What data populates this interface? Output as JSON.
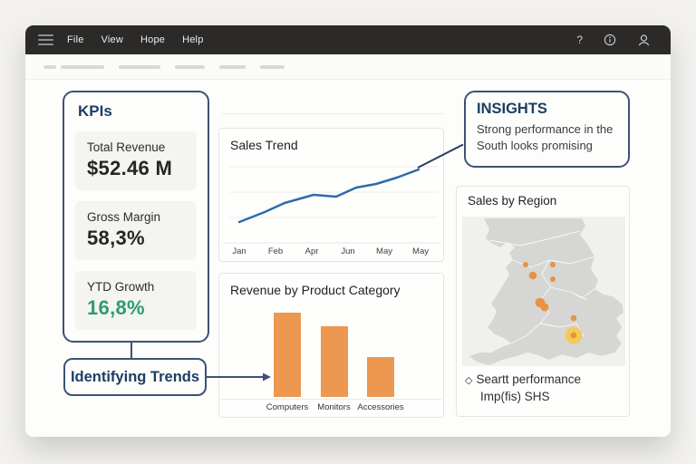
{
  "window": {
    "titlebar": {
      "bg": "#2b2a29",
      "menus": [
        "File",
        "View",
        "Hope",
        "Help"
      ],
      "right_icons": [
        "help-icon",
        "info-icon",
        "account-icon"
      ]
    },
    "toolbar": {
      "placeholder_dash_widths": [
        14,
        48,
        46,
        33,
        29,
        27
      ]
    }
  },
  "kpis": {
    "title": "KPIs",
    "cards": [
      {
        "label": "Total Revenue",
        "value": "$52.46 M",
        "value_color": "#252525"
      },
      {
        "label": "Gross Margin",
        "value": "58,3%",
        "value_color": "#252525"
      },
      {
        "label": "YTD Growth",
        "value": "16,8%",
        "value_color": "#2e9b72"
      }
    ]
  },
  "callouts": {
    "identifying_trends": {
      "label": "Identifying Trends"
    },
    "insights": {
      "title": "INSIGHTS",
      "body": "Strong performance in the South looks promising"
    }
  },
  "colors": {
    "accent_navy": "#3c5373",
    "heading_navy": "#1d3e63",
    "growth_green": "#2e9b72",
    "bar_orange": "#ec9850",
    "line_blue": "#2f6ba8",
    "connector_navy": "#2c3e60",
    "map_dot_orange": "#e8913f",
    "map_highlight_yellow": "#f3ca56",
    "map_land_gray": "#d6d6d4"
  },
  "chart_data": [
    {
      "id": "sales_trend",
      "type": "line",
      "title": "Sales Trend",
      "x_ticks": [
        "Jan",
        "Feb",
        "Apr",
        "Jun",
        "May",
        "May"
      ],
      "series": [
        {
          "name": "Sales",
          "points": [
            [
              5.3,
              23
            ],
            [
              17.6,
              34
            ],
            [
              27.3,
              44
            ],
            [
              41.4,
              53
            ],
            [
              52.4,
              51
            ],
            [
              62.1,
              61
            ],
            [
              71.8,
              65
            ],
            [
              81.9,
              72
            ],
            [
              92.5,
              81
            ]
          ]
        }
      ],
      "ylim": [
        0,
        100
      ],
      "y_axis_labeled": false,
      "gridline_values": [
        28,
        56,
        84
      ],
      "grid": true,
      "legend_position": "none",
      "line_color": "#2f6ba8"
    },
    {
      "id": "revenue_by_category",
      "type": "bar",
      "title": "Revenue by Product Category",
      "categories": [
        "Computers",
        "Monitors",
        "Accessories"
      ],
      "values": [
        93,
        78,
        44
      ],
      "ylim": [
        0,
        110
      ],
      "y_axis_labeled": false,
      "grid": false,
      "bar_color": "#ec9850"
    },
    {
      "id": "sales_by_region",
      "type": "map",
      "title": "Sales by Region",
      "legend_icon": "◇",
      "legend_lines": [
        "Seartt performance",
        "Imp(fis) SHS"
      ],
      "dot_color": "#e8913f",
      "highlight_color": "#f3ca56",
      "points": [
        {
          "x": 70,
          "y": 53,
          "r": 3
        },
        {
          "x": 100,
          "y": 53,
          "r": 3
        },
        {
          "x": 78,
          "y": 65,
          "r": 4.3
        },
        {
          "x": 100,
          "y": 69,
          "r": 3
        },
        {
          "x": 86,
          "y": 95,
          "r": 5.3
        },
        {
          "x": 91,
          "y": 100,
          "r": 4.5
        },
        {
          "x": 123,
          "y": 112,
          "r": 3.3
        },
        {
          "x": 123,
          "y": 131,
          "r": 3.4,
          "highlight_r": 9.5
        }
      ]
    }
  ]
}
